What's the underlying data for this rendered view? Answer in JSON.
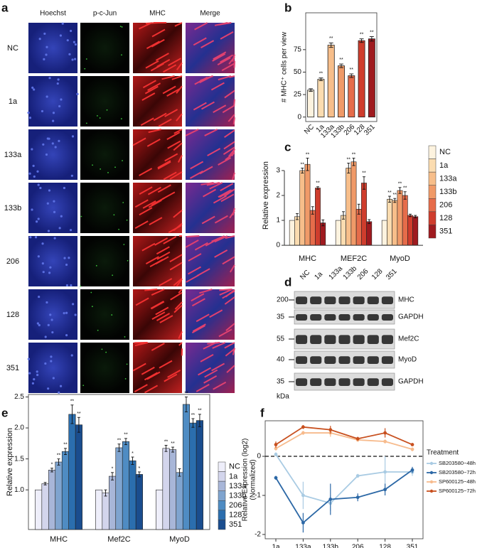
{
  "letters": [
    "a",
    "b",
    "c",
    "d",
    "e",
    "f"
  ],
  "panel_a": {
    "columns": [
      "Hoechst",
      "p-c-Jun",
      "MHC",
      "Merge"
    ],
    "rows": [
      "NC",
      "1a",
      "133a",
      "133b",
      "206",
      "128",
      "351"
    ]
  },
  "blot": {
    "lanes": [
      "NC",
      "1a",
      "133a",
      "133b",
      "206",
      "128",
      "351"
    ],
    "markers": [
      "200",
      "35",
      "55",
      "40",
      "35"
    ],
    "unit": "kDa",
    "bands": [
      "MHC",
      "GAPDH",
      "Mef2C",
      "MyoD",
      "GAPDH"
    ]
  },
  "chart_data": [
    {
      "type": "bar",
      "ylabel": "# MHC⁺ cells per view",
      "categories": [
        "NC",
        "1a",
        "133a",
        "133b",
        "206",
        "128",
        "351"
      ],
      "values": [
        30,
        42,
        80,
        57,
        46,
        85,
        87
      ],
      "errors": [
        1.5,
        1.5,
        2.5,
        2,
        2,
        2,
        2.5
      ],
      "annotations": [
        null,
        "**",
        "**",
        "**",
        "**",
        "**",
        "**"
      ],
      "colors": [
        "#fdf3df",
        "#fbdcb0",
        "#f7be8a",
        "#f09a68",
        "#e66c4a",
        "#cf3d2d",
        "#9f1a1f"
      ],
      "ylim": [
        -5,
        116
      ],
      "yticks": [
        0,
        25,
        50,
        75
      ]
    },
    {
      "type": "grouped_bar",
      "ylabel": "Relative expression",
      "categories": [
        "MHC",
        "MEF2C",
        "MyoD"
      ],
      "series": [
        {
          "name": "NC",
          "color": "#fdf3df",
          "values": [
            1,
            1,
            1
          ],
          "errors": [
            0,
            0,
            0
          ],
          "annotations": [
            null,
            null,
            null
          ]
        },
        {
          "name": "1a",
          "color": "#fbdcb0",
          "values": [
            1.15,
            1.2,
            1.85
          ],
          "errors": [
            0.12,
            0.15,
            0.12
          ],
          "annotations": [
            null,
            null,
            "**"
          ]
        },
        {
          "name": "133a",
          "color": "#f7be8a",
          "values": [
            3.0,
            3.1,
            1.8
          ],
          "errors": [
            0.1,
            0.2,
            0.08
          ],
          "annotations": [
            "**",
            "**",
            "**"
          ]
        },
        {
          "name": "133b",
          "color": "#f09a68",
          "values": [
            3.25,
            3.35,
            2.2
          ],
          "errors": [
            0.25,
            0.15,
            0.12
          ],
          "annotations": [
            "**",
            "**",
            "**"
          ]
        },
        {
          "name": "206",
          "color": "#e66c4a",
          "values": [
            1.4,
            1.45,
            2.0
          ],
          "errors": [
            0.15,
            0.2,
            0.15
          ],
          "annotations": [
            null,
            null,
            "**"
          ]
        },
        {
          "name": "128",
          "color": "#cf3d2d",
          "values": [
            2.3,
            2.5,
            1.2
          ],
          "errors": [
            0.05,
            0.25,
            0.05
          ],
          "annotations": [
            "**",
            "**",
            null
          ]
        },
        {
          "name": "351",
          "color": "#9f1a1f",
          "values": [
            0.9,
            0.95,
            1.15
          ],
          "errors": [
            0.12,
            0.08,
            0.05
          ],
          "annotations": [
            null,
            null,
            null
          ]
        }
      ],
      "ylim": [
        -0.14,
        4.14
      ],
      "yticks": [
        0,
        1,
        2,
        3
      ]
    },
    {
      "type": "grouped_bar",
      "ylabel": "Relative expression",
      "categories": [
        "MHC",
        "Mef2C",
        "MyoD"
      ],
      "series": [
        {
          "name": "NC",
          "color": "#eeeefa",
          "values": [
            1,
            1,
            1
          ],
          "errors": [
            0,
            0,
            0
          ],
          "annotations": [
            null,
            null,
            null
          ]
        },
        {
          "name": "1a",
          "color": "#d3d5ec",
          "values": [
            1.1,
            0.95,
            1.67
          ],
          "errors": [
            0.02,
            0.05,
            0.05
          ],
          "annotations": [
            null,
            null,
            "**"
          ]
        },
        {
          "name": "133a",
          "color": "#a8b6d8",
          "values": [
            1.32,
            1.22,
            1.65
          ],
          "errors": [
            0.03,
            0.06,
            0.04
          ],
          "annotations": [
            "*",
            "*",
            "**"
          ]
        },
        {
          "name": "133b",
          "color": "#7fa4cf",
          "values": [
            1.45,
            1.68,
            1.28
          ],
          "errors": [
            0.05,
            0.06,
            0.06
          ],
          "annotations": [
            "**",
            "**",
            null
          ]
        },
        {
          "name": "206",
          "color": "#4f8cc3",
          "values": [
            1.62,
            1.78,
            2.38
          ],
          "errors": [
            0.05,
            0.05,
            0.12
          ],
          "annotations": [
            "**",
            "**",
            "**"
          ]
        },
        {
          "name": "128",
          "color": "#2b6eae",
          "values": [
            2.22,
            1.47,
            2.08
          ],
          "errors": [
            0.15,
            0.06,
            0.07
          ],
          "annotations": [
            "**",
            "*",
            "**"
          ]
        },
        {
          "name": "351",
          "color": "#1a4d8e",
          "values": [
            2.05,
            1.25,
            2.12
          ],
          "errors": [
            0.12,
            0.04,
            0.1
          ],
          "annotations": [
            "**",
            "*",
            "**"
          ]
        }
      ],
      "ylim": [
        0.36,
        2.54
      ],
      "yticks": [
        {
          "value": 1,
          "label": "1.0"
        },
        {
          "value": 1.5,
          "label": "1.5"
        },
        {
          "value": 2,
          "label": "2.0"
        },
        {
          "value": 2.5,
          "label": "2.5"
        }
      ]
    },
    {
      "type": "line",
      "ylabel": [
        "Relative Expression (log2)",
        "(Normalized)"
      ],
      "legend_title": "Treatment",
      "categories": [
        "1a",
        "133a",
        "133b",
        "206",
        "128",
        "351"
      ],
      "series": [
        {
          "name": "SB203580−48h",
          "color": "#a9cbe3",
          "values": [
            0.05,
            -1.0,
            -1.2,
            -0.5,
            -0.4,
            -0.4
          ],
          "errors": [
            0.05,
            0.35,
            0.2,
            0.05,
            0.4,
            0.1
          ]
        },
        {
          "name": "SB203580−72h",
          "color": "#2c68a6",
          "values": [
            -0.55,
            -1.7,
            -1.1,
            -1.05,
            -0.85,
            -0.35
          ],
          "errors": [
            0.05,
            0.25,
            0.4,
            0.1,
            0.15,
            0.08
          ]
        },
        {
          "name": "SP600125−48h",
          "color": "#f7bb8d",
          "values": [
            0.2,
            0.6,
            0.6,
            0.42,
            0.38,
            0.18
          ],
          "errors": [
            0.05,
            0.05,
            0.1,
            0.05,
            0.05,
            0.05
          ]
        },
        {
          "name": "SP600125−72h",
          "color": "#c8501f",
          "values": [
            0.3,
            0.75,
            0.68,
            0.45,
            0.6,
            0.3
          ],
          "errors": [
            0.08,
            0.05,
            0.1,
            0.05,
            0.12,
            0.03
          ]
        }
      ],
      "hline": 0,
      "ylim": [
        -2.11,
        0.91
      ],
      "yticks": [
        -2,
        -1,
        0
      ]
    }
  ]
}
